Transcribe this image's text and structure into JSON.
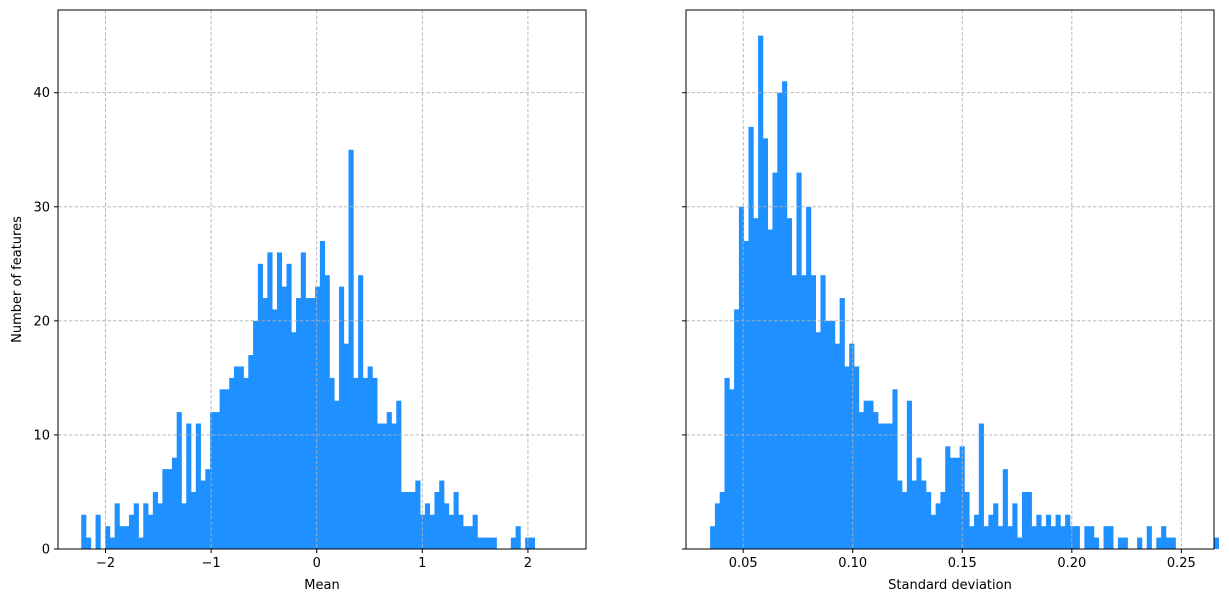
{
  "chart_data": [
    {
      "type": "histogram",
      "xlabel": "Mean",
      "ylabel": "Number of features",
      "xlim": [
        -2.45,
        2.55
      ],
      "ylim": [
        0,
        47.25
      ],
      "xticks": [
        -2,
        -1,
        0,
        1,
        2
      ],
      "xtick_labels": [
        "−2",
        "−1",
        "0",
        "1",
        "2"
      ],
      "yticks": [
        0,
        10,
        20,
        30,
        40
      ],
      "ytick_labels": [
        "0",
        "10",
        "20",
        "30",
        "40"
      ],
      "grid": true,
      "bar_color": "#1e90ff",
      "bin_start": -2.23,
      "bin_width": 0.0452,
      "values": [
        3,
        1,
        0,
        3,
        0,
        2,
        1,
        4,
        2,
        2,
        3,
        4,
        1,
        4,
        3,
        5,
        4,
        7,
        7,
        8,
        12,
        4,
        11,
        5,
        11,
        6,
        7,
        12,
        12,
        14,
        14,
        15,
        16,
        16,
        15,
        17,
        20,
        25,
        22,
        26,
        21,
        26,
        23,
        25,
        19,
        22,
        26,
        22,
        22,
        23,
        27,
        24,
        15,
        13,
        23,
        18,
        35,
        15,
        24,
        15,
        16,
        15,
        11,
        11,
        12,
        11,
        13,
        5,
        5,
        5,
        6,
        3,
        4,
        3,
        5,
        6,
        4,
        3,
        5,
        3,
        2,
        2,
        3,
        1,
        1,
        1,
        1,
        0,
        0,
        0,
        1,
        2,
        0,
        1,
        1
      ]
    },
    {
      "type": "histogram",
      "xlabel": "Standard deviation",
      "ylabel": "",
      "xlim": [
        0.0239,
        0.2649
      ],
      "ylim": [
        0,
        47.25
      ],
      "xticks": [
        0.05,
        0.1,
        0.15,
        0.2,
        0.25
      ],
      "xtick_labels": [
        "0.05",
        "0.10",
        "0.15",
        "0.20",
        "0.25"
      ],
      "yticks": [
        0,
        10,
        20,
        30,
        40
      ],
      "ytick_labels": [],
      "grid": true,
      "bar_color": "#1e90ff",
      "bin_start": 0.0349,
      "bin_width": 0.00219,
      "values": [
        2,
        4,
        5,
        15,
        14,
        21,
        30,
        27,
        37,
        29,
        45,
        36,
        28,
        33,
        40,
        41,
        29,
        24,
        33,
        24,
        30,
        24,
        19,
        24,
        20,
        20,
        18,
        22,
        16,
        18,
        16,
        12,
        13,
        13,
        12,
        11,
        11,
        11,
        14,
        6,
        5,
        13,
        6,
        8,
        6,
        5,
        3,
        4,
        5,
        9,
        8,
        8,
        9,
        5,
        2,
        3,
        11,
        2,
        3,
        4,
        2,
        7,
        2,
        4,
        1,
        5,
        5,
        2,
        3,
        2,
        3,
        2,
        3,
        2,
        3,
        2,
        2,
        0,
        2,
        2,
        1,
        0,
        2,
        2,
        0,
        1,
        1,
        0,
        0,
        1,
        0,
        2,
        0,
        1,
        2,
        1,
        1,
        0,
        0,
        0,
        0,
        0,
        0,
        0,
        0,
        1
      ]
    }
  ]
}
